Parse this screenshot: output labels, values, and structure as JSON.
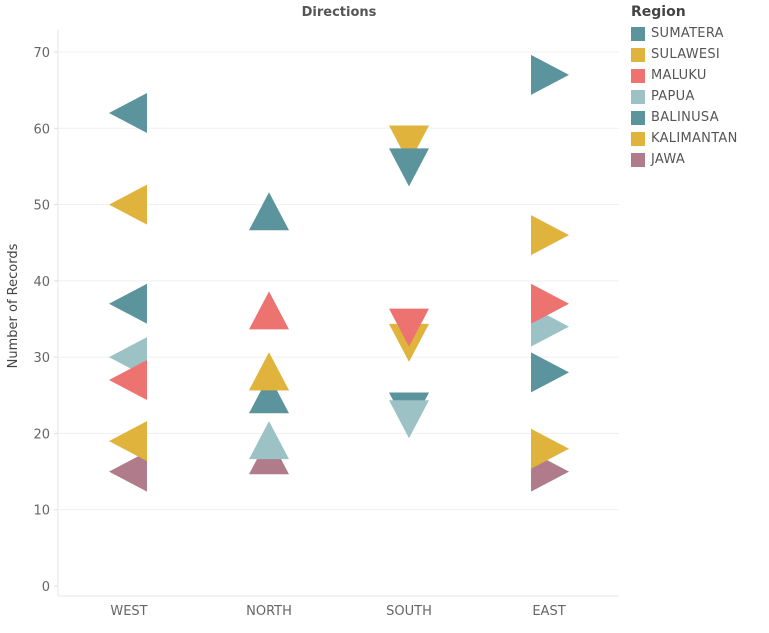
{
  "chart_data": {
    "type": "scatter",
    "title": "Directions",
    "xlabel": "",
    "ylabel": "Number of Records",
    "categories": [
      "WEST",
      "NORTH",
      "SOUTH",
      "EAST"
    ],
    "marker_direction": {
      "WEST": "left",
      "NORTH": "up",
      "SOUTH": "down",
      "EAST": "right"
    },
    "ylim": [
      0,
      70
    ],
    "yticks": [
      0,
      10,
      20,
      30,
      40,
      50,
      60,
      70
    ],
    "grid": true,
    "legend_title": "Region",
    "legend_position": "right",
    "series": [
      {
        "name": "SUMATERA",
        "color": "#5b949c",
        "values": [
          62,
          49,
          55,
          67
        ]
      },
      {
        "name": "SULAWESI",
        "color": "#e0b43c",
        "values": [
          50,
          28,
          58,
          46
        ]
      },
      {
        "name": "MALUKU",
        "color": "#ec7370",
        "values": [
          27,
          36,
          34,
          37
        ]
      },
      {
        "name": "PAPUA",
        "color": "#9cc2c6",
        "values": [
          30,
          19,
          22,
          34
        ]
      },
      {
        "name": "BALINUSA",
        "color": "#5b949c",
        "values": [
          37,
          25,
          23,
          28
        ]
      },
      {
        "name": "KALIMANTAN",
        "color": "#e0b43c",
        "values": [
          19,
          28,
          32,
          18
        ]
      },
      {
        "name": "JAWA",
        "color": "#b07c8c",
        "values": [
          15,
          17,
          null,
          15
        ]
      }
    ]
  }
}
